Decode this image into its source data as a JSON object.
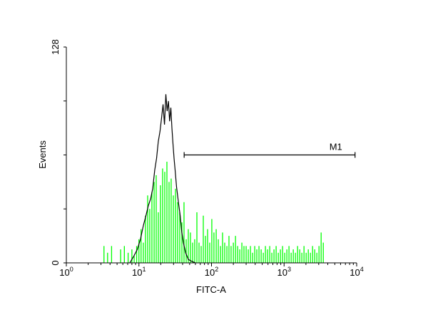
{
  "chart_data": {
    "type": "histogram",
    "x_axis": {
      "label": "FITC-A",
      "scale": "log",
      "range": [
        1,
        10000
      ],
      "ticks": [
        {
          "base": "10",
          "exp": "0",
          "value": 1
        },
        {
          "base": "10",
          "exp": "1",
          "value": 10
        },
        {
          "base": "10",
          "exp": "2",
          "value": 100
        },
        {
          "base": "10",
          "exp": "3",
          "value": 1000
        },
        {
          "base": "10",
          "exp": "4",
          "value": 10000
        }
      ]
    },
    "y_axis": {
      "label": "Events",
      "range": [
        0,
        128
      ],
      "tick_labels": [
        {
          "text": "0",
          "value": 0
        },
        {
          "text": "128",
          "value": 128
        }
      ],
      "minor_ticks": [
        32,
        64,
        96
      ]
    },
    "series": [
      {
        "style": "outline",
        "color": "#000000",
        "x": [
          7.5,
          8.5,
          9.5,
          10.5,
          11.5,
          12.5,
          13.5,
          14.5,
          15.5,
          16.5,
          17.5,
          18.5,
          19.5,
          20.5,
          21.5,
          22.5,
          23.5,
          24.5,
          25.5,
          26.5,
          27.5,
          28.5,
          29.5,
          30.5,
          31.5,
          33,
          35,
          37,
          39,
          41,
          44,
          48,
          53,
          60
        ],
        "y": [
          0,
          4,
          8,
          14,
          22,
          28,
          34,
          38,
          44,
          55,
          62,
          72,
          78,
          86,
          94,
          82,
          100,
          90,
          96,
          84,
          92,
          80,
          70,
          62,
          55,
          45,
          36,
          28,
          18,
          12,
          6,
          2,
          1,
          0
        ]
      },
      {
        "style": "bars",
        "color": "#00ff00",
        "x": [
          3.3,
          3.7,
          4.2,
          5.6,
          6.3,
          7.1,
          8.0,
          8.6,
          9.3,
          10.0,
          10.7,
          11.5,
          12.3,
          13.2,
          14.1,
          15.1,
          16.2,
          17.3,
          18.5,
          19.8,
          21.2,
          22.7,
          24.3,
          26.0,
          27.8,
          29.8,
          31.9,
          34.1,
          36.5,
          39.1,
          41.8,
          44.8,
          47.9,
          51.3,
          54.9,
          58.7,
          62.9,
          67.3,
          72.0,
          77.1,
          82.5,
          88.3,
          94.5,
          101,
          108,
          116,
          124,
          133,
          142,
          152,
          163,
          174,
          186,
          200,
          214,
          229,
          245,
          262,
          280,
          300,
          321,
          344,
          368,
          394,
          421,
          451,
          483,
          517,
          553,
          592,
          634,
          678,
          726,
          777,
          832,
          890,
          953,
          1020,
          1092,
          1168,
          1251,
          1339,
          1433,
          1534,
          1642,
          1757,
          1881,
          2013,
          2155,
          2306,
          2469,
          2642,
          2828,
          3027,
          3240,
          3468
        ],
        "y": [
          10,
          6,
          10,
          8,
          10,
          6,
          8,
          4,
          10,
          14,
          20,
          12,
          28,
          40,
          32,
          42,
          48,
          52,
          30,
          46,
          56,
          54,
          60,
          48,
          50,
          40,
          44,
          36,
          30,
          24,
          36,
          14,
          20,
          18,
          12,
          14,
          30,
          12,
          10,
          28,
          16,
          20,
          12,
          26,
          18,
          20,
          14,
          10,
          18,
          12,
          10,
          16,
          10,
          12,
          16,
          10,
          8,
          12,
          10,
          10,
          8,
          10,
          6,
          10,
          8,
          10,
          8,
          6,
          10,
          8,
          10,
          6,
          8,
          10,
          6,
          8,
          10,
          6,
          8,
          10,
          6,
          8,
          6,
          10,
          8,
          6,
          10,
          6,
          8,
          6,
          10,
          8,
          6,
          10,
          18,
          12
        ]
      }
    ],
    "markers": [
      {
        "label": "M1",
        "x_start": 42,
        "x_end": 9500,
        "y": 64
      }
    ]
  }
}
